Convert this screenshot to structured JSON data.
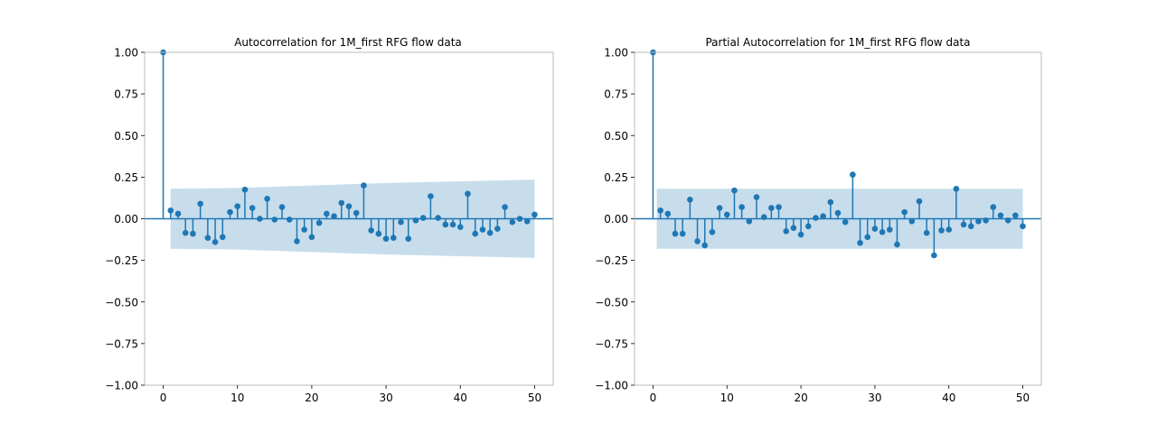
{
  "chart_data": [
    {
      "type": "stem",
      "title": "Autocorrelation for 1M_first RFG flow data",
      "xlabel": "",
      "ylabel": "",
      "xlim": [
        -2.5,
        52.5
      ],
      "ylim": [
        -1.0,
        1.0
      ],
      "xticks": [
        0,
        10,
        20,
        30,
        40,
        50
      ],
      "yticks": [
        -1.0,
        -0.75,
        -0.5,
        -0.25,
        0.0,
        0.25,
        0.5,
        0.75,
        1.0
      ],
      "xtick_labels": [
        "0",
        "10",
        "20",
        "30",
        "40",
        "50"
      ],
      "ytick_labels": [
        "−1.00",
        "−0.75",
        "−0.50",
        "−0.25",
        "0.00",
        "0.25",
        "0.50",
        "0.75",
        "1.00"
      ],
      "grid": false,
      "lags": [
        0,
        1,
        2,
        3,
        4,
        5,
        6,
        7,
        8,
        9,
        10,
        11,
        12,
        13,
        14,
        15,
        16,
        17,
        18,
        19,
        20,
        21,
        22,
        23,
        24,
        25,
        26,
        27,
        28,
        29,
        30,
        31,
        32,
        33,
        34,
        35,
        36,
        37,
        38,
        39,
        40,
        41,
        42,
        43,
        44,
        45,
        46,
        47,
        48,
        49,
        50
      ],
      "values": [
        1.0,
        0.05,
        0.03,
        -0.085,
        -0.09,
        0.09,
        -0.115,
        -0.14,
        -0.11,
        0.04,
        0.075,
        0.175,
        0.065,
        0.0,
        0.12,
        -0.005,
        0.07,
        -0.005,
        -0.135,
        -0.065,
        -0.11,
        -0.025,
        0.03,
        0.015,
        0.095,
        0.075,
        0.035,
        0.2,
        -0.07,
        -0.09,
        -0.12,
        -0.115,
        -0.02,
        -0.12,
        -0.01,
        0.005,
        0.135,
        0.005,
        -0.035,
        -0.035,
        -0.05,
        0.15,
        -0.09,
        -0.065,
        -0.085,
        -0.06,
        0.07,
        -0.02,
        0.0,
        -0.015,
        0.025
      ],
      "confidence_band": {
        "lags": [
          1,
          10,
          20,
          30,
          40,
          50
        ],
        "upper": [
          0.18,
          0.185,
          0.2,
          0.215,
          0.225,
          0.235
        ]
      },
      "colors": {
        "stem": "#1f77b4",
        "band": "#1f77b4"
      }
    },
    {
      "type": "stem",
      "title": "Partial Autocorrelation for 1M_first RFG flow data",
      "xlabel": "",
      "ylabel": "",
      "xlim": [
        -2.5,
        52.5
      ],
      "ylim": [
        -1.0,
        1.0
      ],
      "xticks": [
        0,
        10,
        20,
        30,
        40,
        50
      ],
      "yticks": [
        -1.0,
        -0.75,
        -0.5,
        -0.25,
        0.0,
        0.25,
        0.5,
        0.75,
        1.0
      ],
      "xtick_labels": [
        "0",
        "10",
        "20",
        "30",
        "40",
        "50"
      ],
      "ytick_labels": [
        "−1.00",
        "−0.75",
        "−0.50",
        "−0.25",
        "0.00",
        "0.25",
        "0.50",
        "0.75",
        "1.00"
      ],
      "grid": false,
      "lags": [
        0,
        1,
        2,
        3,
        4,
        5,
        6,
        7,
        8,
        9,
        10,
        11,
        12,
        13,
        14,
        15,
        16,
        17,
        18,
        19,
        20,
        21,
        22,
        23,
        24,
        25,
        26,
        27,
        28,
        29,
        30,
        31,
        32,
        33,
        34,
        35,
        36,
        37,
        38,
        39,
        40,
        41,
        42,
        43,
        44,
        45,
        46,
        47,
        48,
        49,
        50
      ],
      "values": [
        1.0,
        0.05,
        0.03,
        -0.09,
        -0.09,
        0.115,
        -0.135,
        -0.16,
        -0.08,
        0.065,
        0.025,
        0.17,
        0.07,
        -0.015,
        0.13,
        0.01,
        0.065,
        0.07,
        -0.075,
        -0.055,
        -0.095,
        -0.045,
        0.005,
        0.015,
        0.1,
        0.035,
        -0.02,
        0.265,
        -0.145,
        -0.11,
        -0.06,
        -0.08,
        -0.065,
        -0.155,
        0.04,
        -0.015,
        0.105,
        -0.085,
        -0.22,
        -0.07,
        -0.065,
        0.18,
        -0.035,
        -0.045,
        -0.015,
        -0.01,
        0.07,
        0.02,
        -0.01,
        0.02,
        -0.045
      ],
      "confidence_band": {
        "lags": [
          0.5,
          50
        ],
        "upper": [
          0.18,
          0.18
        ]
      },
      "colors": {
        "stem": "#1f77b4",
        "band": "#1f77b4"
      }
    }
  ]
}
